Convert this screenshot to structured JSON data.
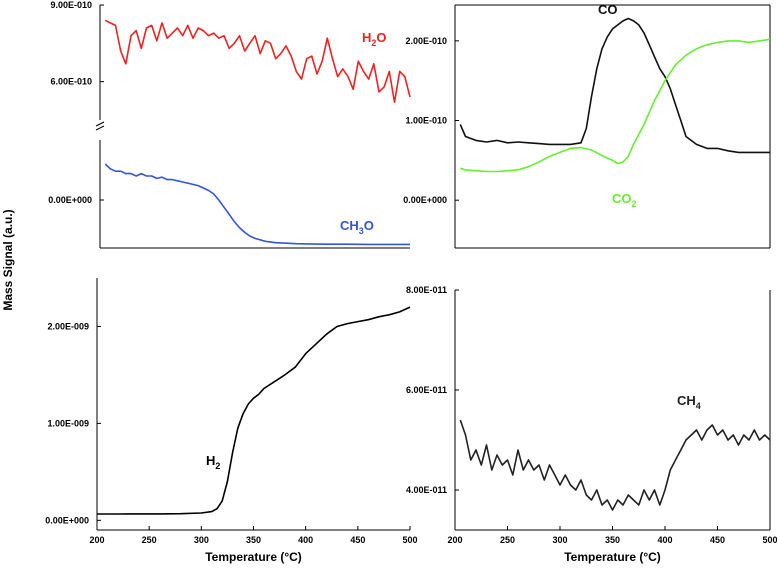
{
  "y_axis_title": "Mass Signal (a.u.)",
  "chart_data": [
    {
      "type": "line",
      "panel": "top-left-upper",
      "xlim": [
        200,
        500
      ],
      "ylim": [
        4.5e-10,
        9e-10
      ],
      "y_tick_labels": [
        "9.00E-010",
        "6.00E-010"
      ],
      "x_tick_labels": [],
      "xlabel": "",
      "series": [
        {
          "name": "H2O",
          "label_main": "H",
          "label_sub": "2",
          "label_tail": "O",
          "color": "#ee2222",
          "x": [
            205,
            210,
            215,
            220,
            225,
            230,
            235,
            240,
            245,
            250,
            255,
            260,
            265,
            270,
            275,
            280,
            285,
            290,
            295,
            300,
            305,
            310,
            315,
            320,
            325,
            330,
            335,
            340,
            345,
            350,
            355,
            360,
            365,
            370,
            375,
            380,
            385,
            390,
            395,
            400,
            405,
            410,
            415,
            420,
            425,
            430,
            435,
            440,
            445,
            450,
            455,
            460,
            465,
            470,
            475,
            480,
            485,
            490,
            495,
            500
          ],
          "y": [
            8.4e-10,
            8.3e-10,
            8.2e-10,
            7.2e-10,
            6.7e-10,
            7.8e-10,
            8e-10,
            7.3e-10,
            8.1e-10,
            8.2e-10,
            7.6e-10,
            8.3e-10,
            7.7e-10,
            7.9e-10,
            8.1e-10,
            7.8e-10,
            8.2e-10,
            7.7e-10,
            8.1e-10,
            8e-10,
            7.8e-10,
            7.9e-10,
            7.7e-10,
            7.8e-10,
            7.3e-10,
            7.5e-10,
            7.8e-10,
            7.2e-10,
            7.5e-10,
            7.8e-10,
            7.1e-10,
            7.6e-10,
            7.5e-10,
            6.9e-10,
            7.1e-10,
            7.4e-10,
            7e-10,
            6.4e-10,
            6.1e-10,
            6.9e-10,
            7e-10,
            6.3e-10,
            6.8e-10,
            7.7e-10,
            6.9e-10,
            6.2e-10,
            6.5e-10,
            6.2e-10,
            5.7e-10,
            6.8e-10,
            6.4e-10,
            6.1e-10,
            6.7e-10,
            5.6e-10,
            5.8e-10,
            6.4e-10,
            5.2e-10,
            6.4e-10,
            6.2e-10,
            5.4e-10
          ]
        }
      ]
    },
    {
      "type": "line",
      "panel": "top-left-lower",
      "xlim": [
        200,
        500
      ],
      "ylim": [
        -2e-11,
        2.5e-11
      ],
      "y_tick_labels": [
        "0.00E+000"
      ],
      "x_tick_labels": [],
      "xlabel": "",
      "series": [
        {
          "name": "CH3O",
          "label_main": "CH",
          "label_sub": "3",
          "label_tail": "O",
          "color": "#3355dd",
          "x": [
            205,
            210,
            215,
            220,
            225,
            230,
            235,
            240,
            245,
            250,
            255,
            260,
            265,
            270,
            275,
            280,
            285,
            290,
            295,
            300,
            305,
            310,
            315,
            320,
            325,
            330,
            335,
            340,
            345,
            350,
            360,
            370,
            380,
            390,
            400,
            420,
            440,
            460,
            480,
            500
          ],
          "y": [
            1.5e-11,
            1.3e-11,
            1.2e-11,
            1.2e-11,
            1.1e-11,
            1.1e-11,
            1e-11,
            1.1e-11,
            1e-11,
            1e-11,
            9e-12,
            9.5e-12,
            8.5e-12,
            8.5e-12,
            8e-12,
            7.5e-12,
            7e-12,
            6.5e-12,
            6e-12,
            5e-12,
            4e-12,
            2.5e-12,
            0.0,
            -3e-12,
            -6e-12,
            -9e-12,
            -1.15e-11,
            -1.35e-11,
            -1.5e-11,
            -1.6e-11,
            -1.72e-11,
            -1.78e-11,
            -1.8e-11,
            -1.82e-11,
            -1.83e-11,
            -1.84e-11,
            -1.84e-11,
            -1.85e-11,
            -1.85e-11,
            -1.85e-11
          ]
        }
      ]
    },
    {
      "type": "line",
      "panel": "top-right",
      "xlim": [
        200,
        500
      ],
      "ylim": [
        -6e-11,
        2.45e-10
      ],
      "y_tick_labels": [
        "2.00E-010",
        "1.00E-010",
        "0.00E+000"
      ],
      "x_tick_labels": [],
      "xlabel": "",
      "series": [
        {
          "name": "CO",
          "label_main": "CO",
          "label_sub": "",
          "label_tail": "",
          "color": "#111111",
          "x": [
            205,
            210,
            220,
            230,
            240,
            250,
            260,
            270,
            280,
            290,
            300,
            310,
            320,
            325,
            330,
            335,
            340,
            345,
            350,
            355,
            360,
            365,
            370,
            375,
            380,
            385,
            390,
            395,
            400,
            405,
            410,
            415,
            420,
            430,
            440,
            450,
            460,
            470,
            480,
            490,
            500
          ],
          "y": [
            9.5e-11,
            8e-11,
            7.5e-11,
            7.3e-11,
            7.5e-11,
            7.2e-11,
            7.3e-11,
            7.2e-11,
            7.1e-11,
            7e-11,
            7e-11,
            7e-11,
            7.2e-11,
            9e-11,
            1.3e-10,
            1.65e-10,
            1.9e-10,
            2.05e-10,
            2.15e-10,
            2.2e-10,
            2.25e-10,
            2.28e-10,
            2.25e-10,
            2.2e-10,
            2.1e-10,
            1.95e-10,
            1.8e-10,
            1.65e-10,
            1.55e-10,
            1.4e-10,
            1.2e-10,
            1e-10,
            8e-11,
            7e-11,
            6.5e-11,
            6.5e-11,
            6.2e-11,
            6e-11,
            6e-11,
            6e-11,
            6e-11
          ]
        },
        {
          "name": "CO2",
          "label_main": "CO",
          "label_sub": "2",
          "label_tail": "",
          "color": "#66ee33",
          "x": [
            205,
            210,
            220,
            230,
            240,
            250,
            260,
            270,
            280,
            290,
            300,
            310,
            320,
            330,
            340,
            350,
            355,
            360,
            365,
            370,
            380,
            390,
            400,
            410,
            420,
            430,
            440,
            450,
            460,
            470,
            480,
            490,
            500
          ],
          "y": [
            4e-11,
            3.8e-11,
            3.7e-11,
            3.6e-11,
            3.6e-11,
            3.7e-11,
            3.8e-11,
            4.2e-11,
            4.8e-11,
            5.5e-11,
            6e-11,
            6.5e-11,
            6.6e-11,
            6.3e-11,
            5.6e-11,
            5e-11,
            4.6e-11,
            4.8e-11,
            5.5e-11,
            7e-11,
            9.5e-11,
            1.25e-10,
            1.5e-10,
            1.7e-10,
            1.82e-10,
            1.9e-10,
            1.95e-10,
            1.98e-10,
            2e-10,
            2e-10,
            1.98e-10,
            2e-10,
            2.02e-10
          ]
        }
      ]
    },
    {
      "type": "line",
      "panel": "bottom-left",
      "xlim": [
        200,
        500
      ],
      "ylim": [
        -1e-10,
        2.5e-09
      ],
      "y_tick_labels": [
        "2.00E-009",
        "1.00E-009",
        "0.00E+000"
      ],
      "x_ticks": [
        200,
        250,
        300,
        350,
        400,
        450,
        500
      ],
      "x_tick_labels": [
        "200",
        "250",
        "300",
        "350",
        "400",
        "450",
        "500"
      ],
      "xlabel": "Temperature (°C)",
      "series": [
        {
          "name": "H2",
          "label_main": "H",
          "label_sub": "2",
          "label_tail": "",
          "color": "#000000",
          "x": [
            200,
            220,
            240,
            260,
            280,
            300,
            310,
            315,
            320,
            325,
            330,
            335,
            340,
            345,
            350,
            355,
            360,
            370,
            380,
            390,
            400,
            410,
            420,
            430,
            440,
            450,
            460,
            470,
            480,
            490,
            500
          ],
          "y": [
            6.5e-11,
            6.5e-11,
            6.6e-11,
            6.6e-11,
            6.8e-11,
            7.5e-11,
            9e-11,
            1.2e-10,
            2e-10,
            4e-10,
            7e-10,
            9.5e-10,
            1.1e-09,
            1.2e-09,
            1.26e-09,
            1.3e-09,
            1.36e-09,
            1.43e-09,
            1.5e-09,
            1.58e-09,
            1.72e-09,
            1.82e-09,
            1.92e-09,
            2e-09,
            2.03e-09,
            2.05e-09,
            2.07e-09,
            2.1e-09,
            2.12e-09,
            2.15e-09,
            2.2e-09
          ]
        }
      ]
    },
    {
      "type": "line",
      "panel": "bottom-right",
      "xlim": [
        200,
        500
      ],
      "ylim": [
        3.2e-11,
        8e-11
      ],
      "y_tick_labels": [
        "8.00E-011",
        "6.00E-011",
        "4.00E-011"
      ],
      "x_ticks": [
        200,
        250,
        300,
        350,
        400,
        450,
        500
      ],
      "x_tick_labels": [
        "200",
        "250",
        "300",
        "350",
        "400",
        "450",
        "500"
      ],
      "xlabel": "Temperature (°C)",
      "series": [
        {
          "name": "CH4",
          "label_main": "CH",
          "label_sub": "4",
          "label_tail": "",
          "color": "#222222",
          "x": [
            205,
            210,
            215,
            220,
            225,
            230,
            235,
            240,
            245,
            250,
            255,
            260,
            265,
            270,
            275,
            280,
            285,
            290,
            295,
            300,
            305,
            310,
            315,
            320,
            325,
            330,
            335,
            340,
            345,
            350,
            355,
            360,
            365,
            370,
            375,
            380,
            385,
            390,
            395,
            400,
            405,
            410,
            415,
            420,
            425,
            430,
            435,
            440,
            445,
            450,
            455,
            460,
            465,
            470,
            475,
            480,
            485,
            490,
            495,
            500
          ],
          "y": [
            5.4e-11,
            5.1e-11,
            4.6e-11,
            4.8e-11,
            4.5e-11,
            4.9e-11,
            4.4e-11,
            4.7e-11,
            4.5e-11,
            4.6e-11,
            4.3e-11,
            4.8e-11,
            4.4e-11,
            4.6e-11,
            4.4e-11,
            4.5e-11,
            4.2e-11,
            4.5e-11,
            4.3e-11,
            4.1e-11,
            4.3e-11,
            4.1e-11,
            4e-11,
            4.2e-11,
            3.9e-11,
            3.8e-11,
            4e-11,
            3.7e-11,
            3.8e-11,
            3.6e-11,
            3.8e-11,
            3.7e-11,
            3.9e-11,
            3.8e-11,
            3.7e-11,
            4e-11,
            3.8e-11,
            4e-11,
            3.7e-11,
            4e-11,
            4.4e-11,
            4.6e-11,
            4.8e-11,
            5e-11,
            5.1e-11,
            5.2e-11,
            5e-11,
            5.2e-11,
            5.3e-11,
            5.1e-11,
            5.2e-11,
            5e-11,
            5.1e-11,
            4.9e-11,
            5.1e-11,
            5e-11,
            5.2e-11,
            5e-11,
            5.1e-11,
            5e-11
          ]
        }
      ]
    }
  ]
}
